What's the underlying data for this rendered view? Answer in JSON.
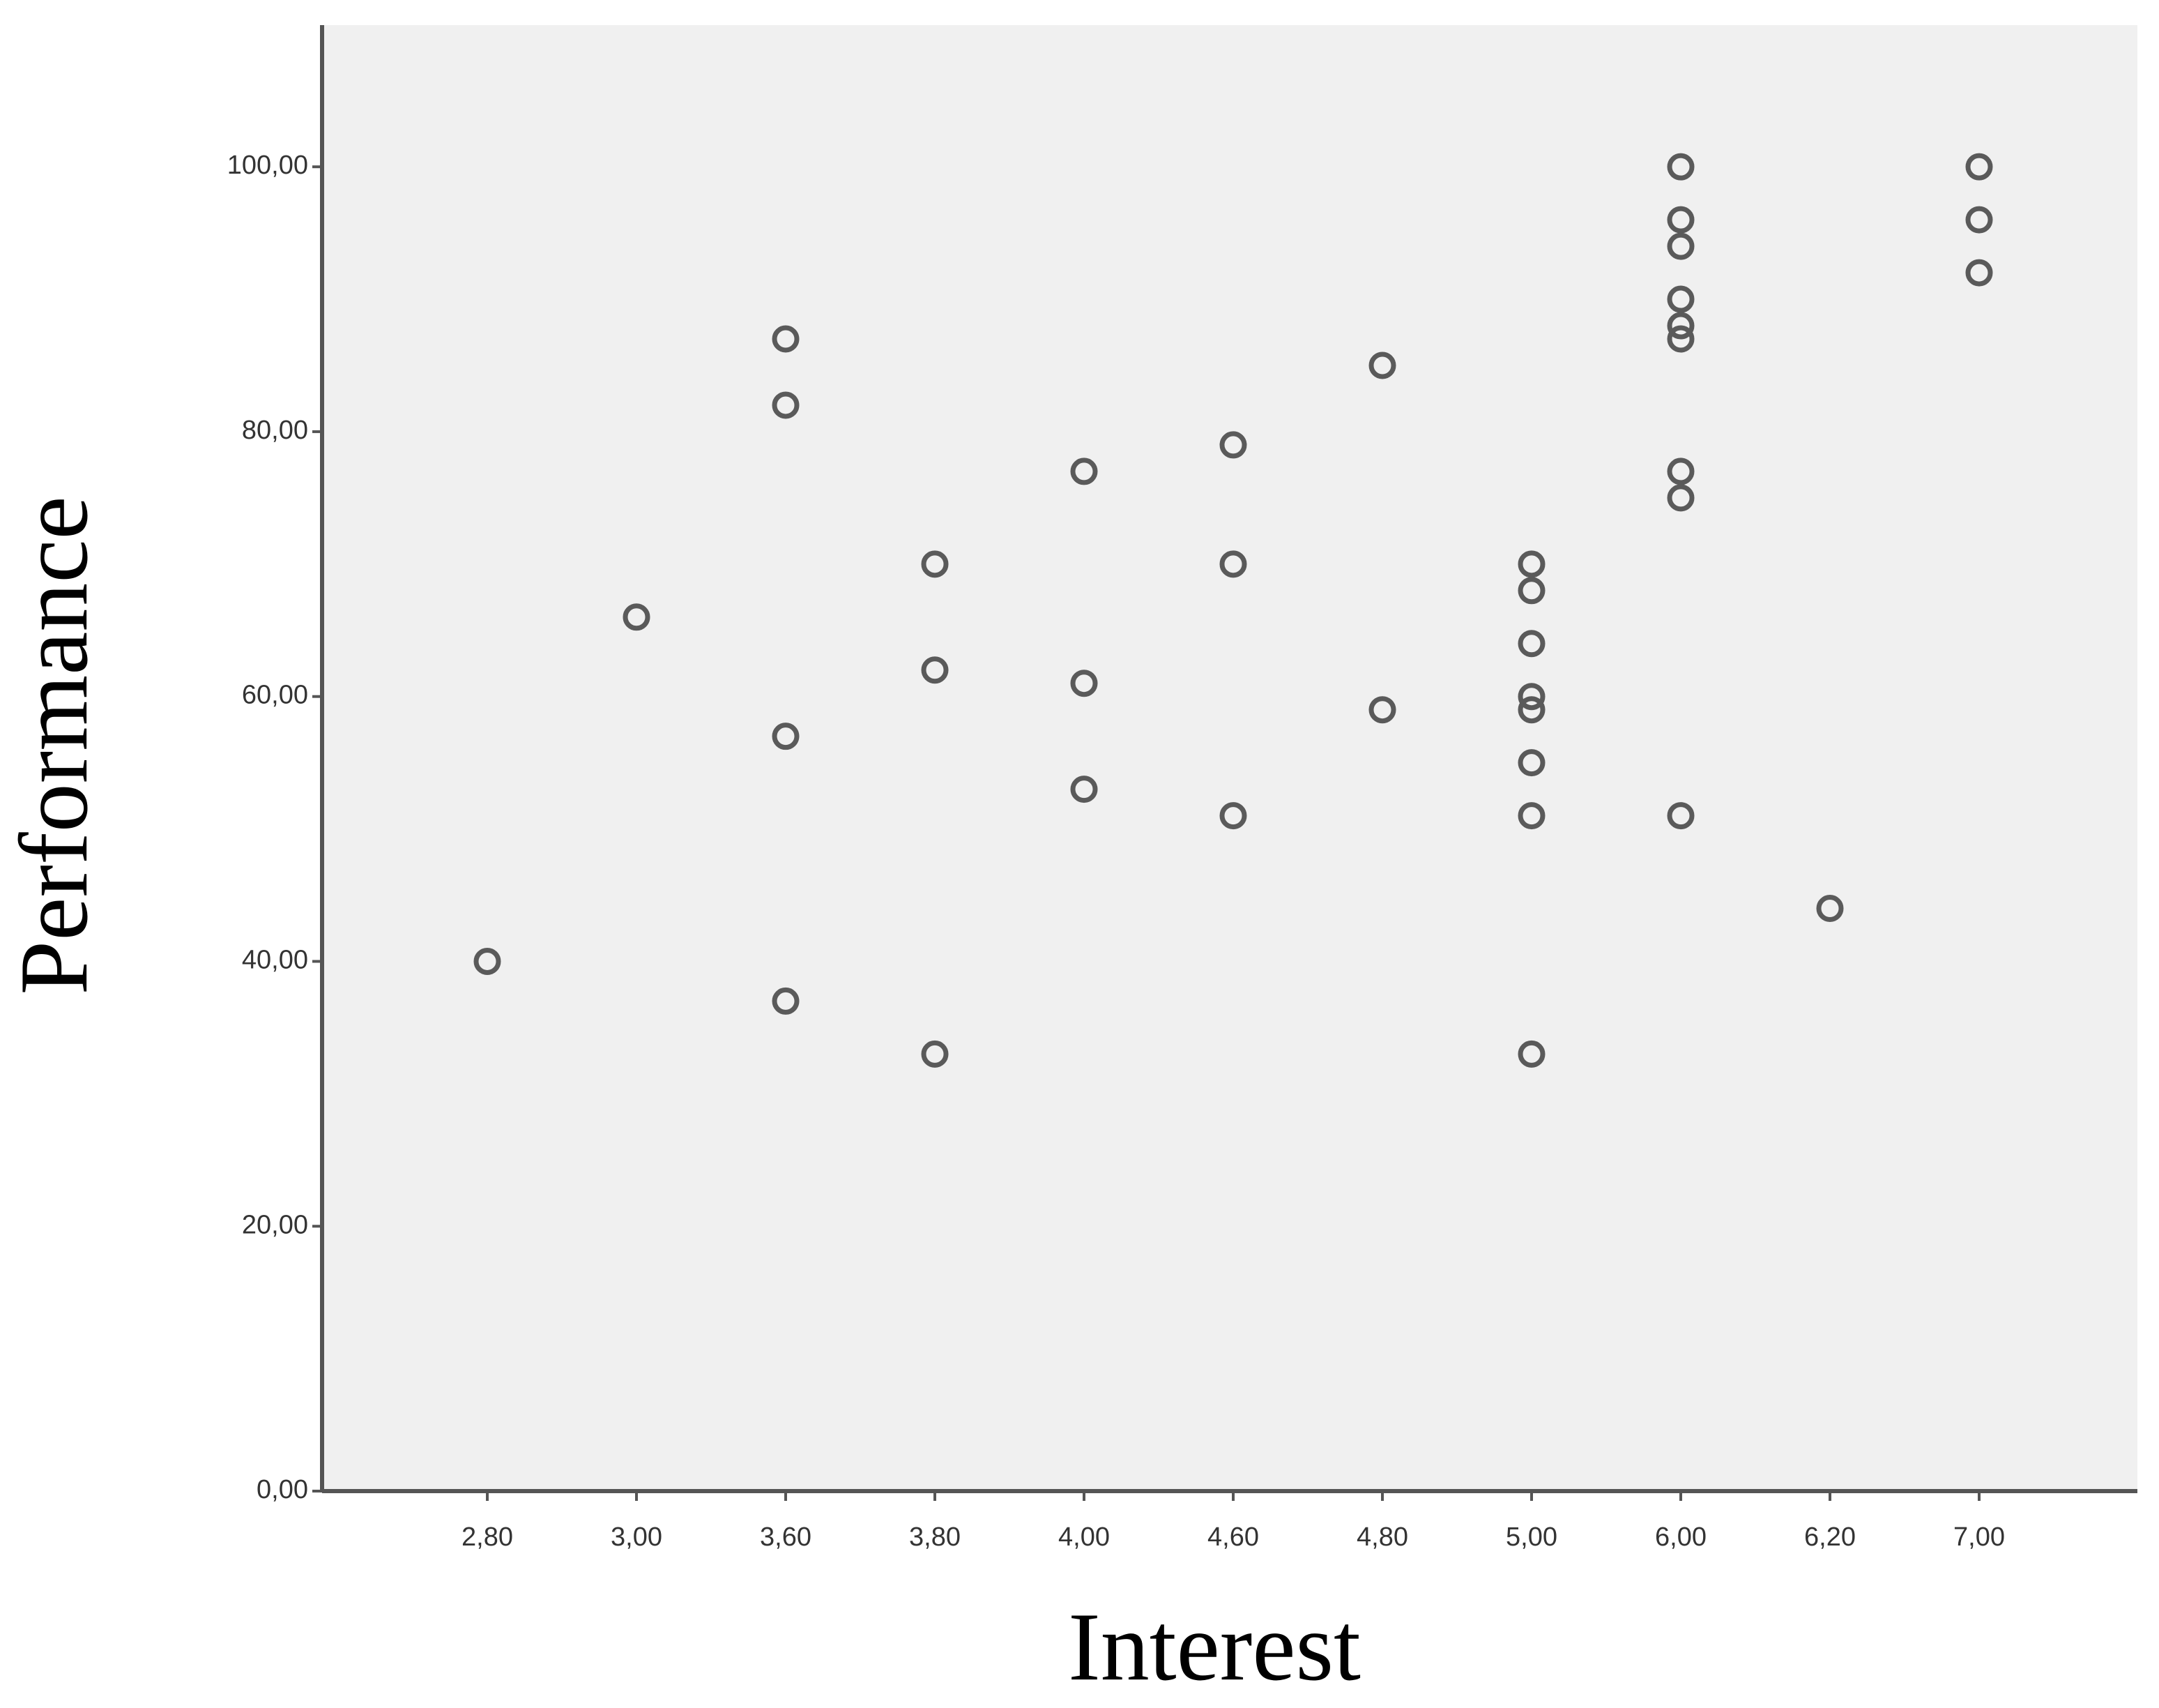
{
  "chart_data": {
    "type": "scatter",
    "x_label": "Interest",
    "y_label": "Performance",
    "categories": [
      "2,80",
      "3,00",
      "3,60",
      "3,80",
      "4,00",
      "4,60",
      "4,80",
      "5,00",
      "6,00",
      "6,20",
      "7,00"
    ],
    "series": [
      {
        "color": "#5a5a5a",
        "x": [
          "2,80",
          "3,00",
          "3,60",
          "3,60",
          "3,60",
          "3,60",
          "3,80",
          "3,80",
          "3,80",
          "4,00",
          "4,00",
          "4,00",
          "4,60",
          "4,60",
          "4,60",
          "4,80",
          "4,80",
          "5,00",
          "5,00",
          "5,00",
          "5,00",
          "5,00",
          "5,00",
          "5,00",
          "5,00",
          "6,00",
          "6,00",
          "6,00",
          "6,00",
          "6,00",
          "6,00",
          "6,00",
          "6,00",
          "6,00",
          "6,20",
          "7,00",
          "7,00",
          "7,00"
        ],
        "values": [
          40,
          66,
          87,
          82,
          57,
          37,
          70,
          62,
          33,
          77,
          61,
          53,
          79,
          70,
          51,
          85,
          59,
          70,
          68,
          64,
          60,
          59,
          55,
          51,
          33,
          100,
          96,
          94,
          90,
          88,
          87,
          77,
          75,
          51,
          44,
          100,
          96,
          92
        ]
      }
    ],
    "ylim": [
      0,
      110.7
    ],
    "yticks": [
      {
        "value": 0,
        "label": "0,00"
      },
      {
        "value": 20,
        "label": "20,00"
      },
      {
        "value": 40,
        "label": "40,00"
      },
      {
        "value": 60,
        "label": "60,00"
      },
      {
        "value": 80,
        "label": "80,00"
      },
      {
        "value": 100,
        "label": "100,00"
      }
    ],
    "grid": false
  }
}
